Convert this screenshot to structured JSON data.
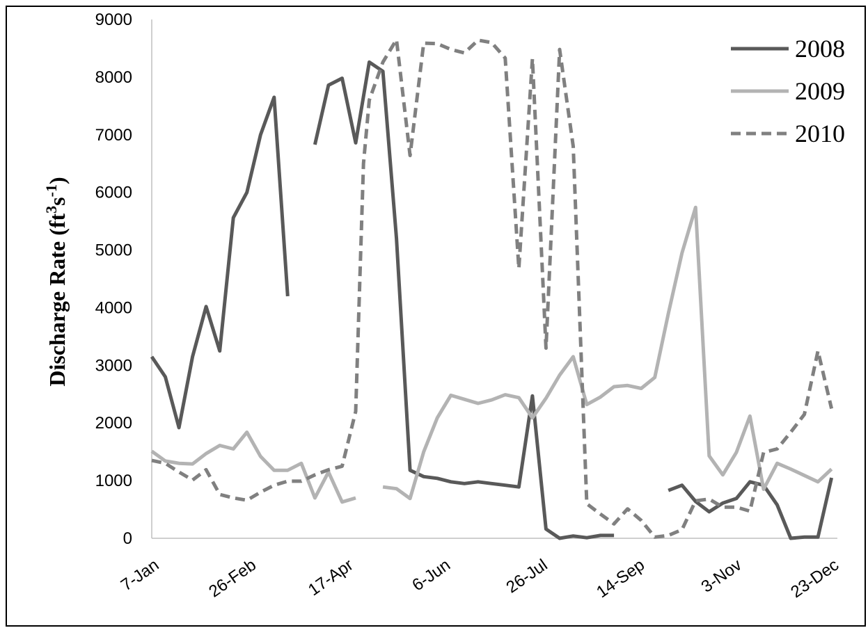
{
  "chart_data": {
    "type": "line",
    "title": "",
    "ylabel_main": "Discharge Rate (ft",
    "ylabel_sup1": "3",
    "ylabel_mid": "s",
    "ylabel_sup2": "-1",
    "ylabel_end": ")",
    "ylim": [
      0,
      9000
    ],
    "yticks": [
      0,
      1000,
      2000,
      3000,
      4000,
      5000,
      6000,
      7000,
      8000,
      9000
    ],
    "x_tick_labels": [
      "7-Jan",
      "26-Feb",
      "17-Apr",
      "6-Jun",
      "26-Jul",
      "14-Sep",
      "3-Nov",
      "23-Dec"
    ],
    "x_tick_days": [
      7,
      57,
      107,
      157,
      207,
      257,
      307,
      357
    ],
    "legend_position": "top-right",
    "series": [
      {
        "name": "2008",
        "color": "#595959",
        "style": "solid",
        "points": [
          [
            7,
            3150
          ],
          [
            14,
            2800
          ],
          [
            21,
            1920
          ],
          [
            28,
            3150
          ],
          [
            35,
            4020
          ],
          [
            42,
            3250
          ],
          [
            49,
            5560
          ],
          [
            56,
            6000
          ],
          [
            63,
            7000
          ],
          [
            70,
            7650
          ],
          [
            77,
            4200
          ],
          null,
          [
            91,
            6830
          ],
          [
            98,
            7860
          ],
          [
            105,
            7980
          ],
          [
            112,
            6860
          ],
          [
            119,
            8260
          ],
          [
            126,
            8100
          ],
          [
            133,
            5200
          ],
          [
            140,
            1180
          ],
          [
            147,
            1070
          ],
          [
            154,
            1040
          ],
          [
            161,
            980
          ],
          [
            168,
            950
          ],
          [
            175,
            980
          ],
          [
            182,
            950
          ],
          [
            189,
            920
          ],
          [
            196,
            890
          ],
          [
            203,
            2470
          ],
          [
            210,
            160
          ],
          [
            217,
            0
          ],
          [
            224,
            40
          ],
          [
            231,
            10
          ],
          [
            238,
            50
          ],
          [
            245,
            50
          ],
          null,
          [
            273,
            830
          ],
          [
            280,
            920
          ],
          [
            287,
            640
          ],
          [
            294,
            460
          ],
          [
            301,
            610
          ],
          [
            308,
            690
          ],
          [
            315,
            980
          ],
          [
            322,
            920
          ],
          [
            329,
            580
          ],
          [
            336,
            0
          ],
          [
            343,
            20
          ],
          [
            350,
            20
          ],
          [
            357,
            1050
          ]
        ]
      },
      {
        "name": "2009",
        "color": "#b3b3b3",
        "style": "solid",
        "points": [
          [
            7,
            1510
          ],
          [
            14,
            1340
          ],
          [
            21,
            1300
          ],
          [
            28,
            1290
          ],
          [
            35,
            1470
          ],
          [
            42,
            1610
          ],
          [
            49,
            1550
          ],
          [
            56,
            1840
          ],
          [
            63,
            1420
          ],
          [
            70,
            1180
          ],
          [
            77,
            1180
          ],
          [
            84,
            1300
          ],
          [
            91,
            700
          ],
          [
            98,
            1150
          ],
          [
            105,
            630
          ],
          [
            112,
            700
          ],
          null,
          [
            126,
            890
          ],
          [
            133,
            860
          ],
          [
            140,
            690
          ],
          [
            147,
            1500
          ],
          [
            154,
            2090
          ],
          [
            161,
            2480
          ],
          [
            168,
            2410
          ],
          [
            175,
            2340
          ],
          [
            182,
            2400
          ],
          [
            189,
            2490
          ],
          [
            196,
            2440
          ],
          [
            203,
            2090
          ],
          [
            210,
            2430
          ],
          [
            217,
            2830
          ],
          [
            224,
            3150
          ],
          [
            231,
            2320
          ],
          [
            238,
            2450
          ],
          [
            245,
            2630
          ],
          [
            252,
            2650
          ],
          [
            259,
            2600
          ],
          [
            266,
            2790
          ],
          [
            273,
            3900
          ],
          [
            280,
            4950
          ],
          [
            287,
            5740
          ],
          [
            294,
            1430
          ],
          [
            301,
            1100
          ],
          [
            308,
            1490
          ],
          [
            315,
            2120
          ],
          [
            322,
            850
          ],
          [
            329,
            1300
          ],
          [
            336,
            1200
          ],
          [
            343,
            1090
          ],
          [
            350,
            980
          ],
          [
            357,
            1200
          ]
        ]
      },
      {
        "name": "2010",
        "color": "#808080",
        "style": "dashed",
        "points": [
          [
            7,
            1350
          ],
          [
            14,
            1300
          ],
          [
            21,
            1150
          ],
          [
            28,
            1010
          ],
          [
            35,
            1190
          ],
          [
            42,
            760
          ],
          [
            49,
            700
          ],
          [
            56,
            660
          ],
          [
            63,
            800
          ],
          [
            70,
            920
          ],
          [
            77,
            990
          ],
          [
            84,
            990
          ],
          [
            91,
            1100
          ],
          [
            98,
            1190
          ],
          [
            105,
            1250
          ],
          [
            112,
            2200
          ],
          [
            116,
            6500
          ],
          [
            119,
            7600
          ],
          [
            126,
            8260
          ],
          [
            133,
            8650
          ],
          [
            140,
            6640
          ],
          [
            147,
            8590
          ],
          [
            154,
            8580
          ],
          [
            161,
            8480
          ],
          [
            168,
            8420
          ],
          [
            175,
            8640
          ],
          [
            182,
            8600
          ],
          [
            189,
            8330
          ],
          [
            196,
            4680
          ],
          [
            203,
            8320
          ],
          [
            210,
            3300
          ],
          [
            217,
            8480
          ],
          [
            224,
            6800
          ],
          [
            231,
            600
          ],
          [
            238,
            420
          ],
          [
            245,
            250
          ],
          [
            252,
            510
          ],
          [
            259,
            310
          ],
          [
            266,
            20
          ],
          [
            273,
            50
          ],
          [
            280,
            150
          ],
          [
            287,
            650
          ],
          [
            294,
            680
          ],
          [
            301,
            540
          ],
          [
            308,
            540
          ],
          [
            315,
            470
          ],
          [
            322,
            1490
          ],
          [
            329,
            1550
          ],
          [
            336,
            1840
          ],
          [
            343,
            2150
          ],
          [
            350,
            3250
          ],
          [
            357,
            2250
          ]
        ]
      }
    ]
  }
}
